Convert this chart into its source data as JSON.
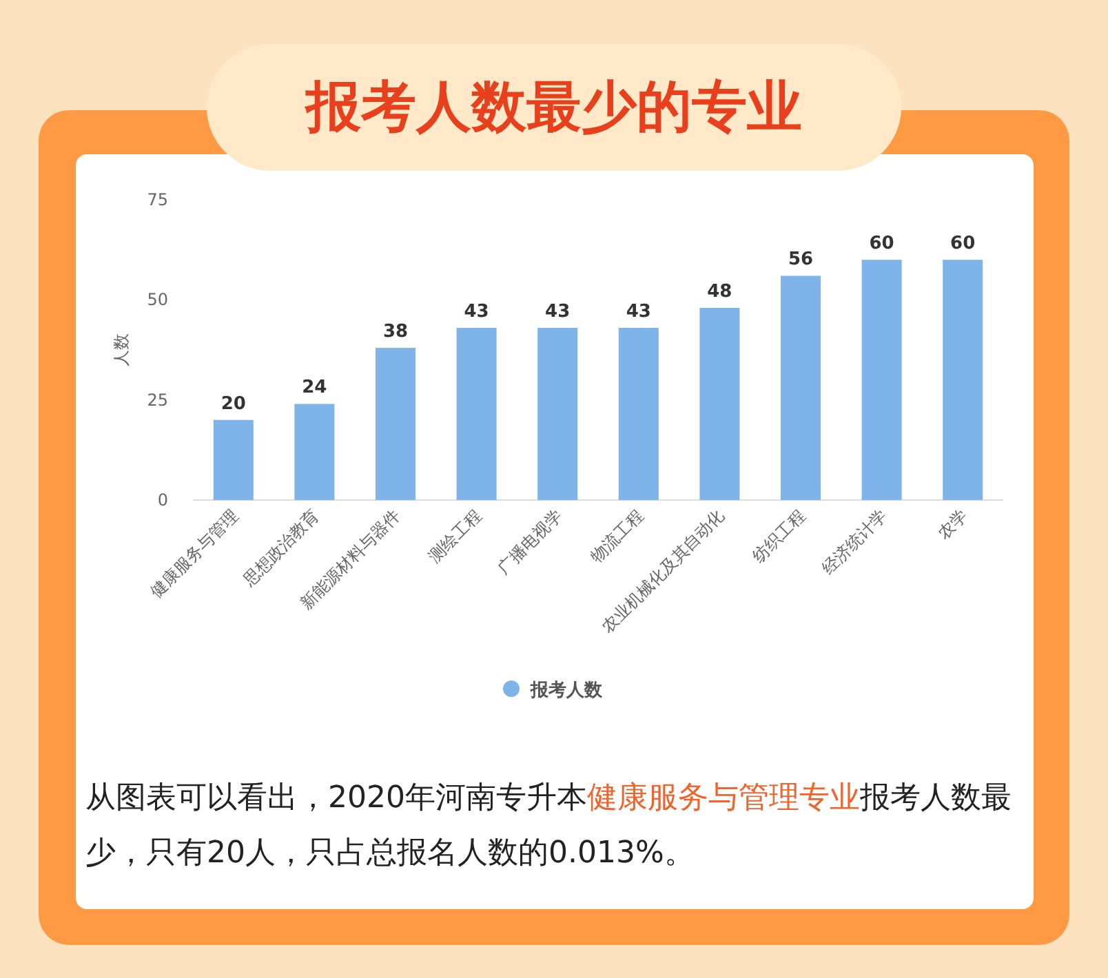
{
  "chart_data": {
    "type": "bar",
    "title": "报考人数最少的专业",
    "ylabel": "人数",
    "categories": [
      "健康服务与管理",
      "思想政治教育",
      "新能源材料与器件",
      "测绘工程",
      "广播电视学",
      "物流工程",
      "农业机械化及其自动化",
      "纺织工程",
      "经济统计学",
      "农学"
    ],
    "series": [
      {
        "name": "报考人数",
        "color": "#7eb4ea",
        "values": [
          20,
          24,
          38,
          43,
          43,
          43,
          48,
          56,
          60,
          60
        ]
      }
    ],
    "ylim": [
      0,
      75
    ],
    "yticks": [
      0,
      25,
      50,
      75
    ],
    "data_labels": true,
    "legend": "bottom",
    "grid": false,
    "annotations": [
      "从图表可以看出，2020年河南专升本",
      "健康服务与管理专业",
      "报考人数最少，只有20人，只占总报名人数的0.013%。"
    ]
  }
}
